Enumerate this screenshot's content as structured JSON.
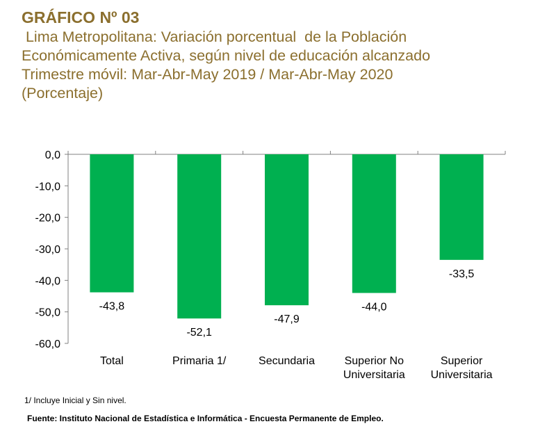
{
  "header": {
    "chart_number": "GRÁFICO Nº 03",
    "line1": " Lima Metropolitana: Variación porcentual  de la Población",
    "line2": "Económicamente Activa, según nivel de educación alcanzado",
    "line3": "Trimestre móvil: Mar-Abr-May 2019 / Mar-Abr-May 2020",
    "line4": "(Porcentaje)"
  },
  "chart_data": {
    "type": "bar",
    "categories": [
      [
        "Total"
      ],
      [
        "Primaria 1/"
      ],
      [
        "Secundaria"
      ],
      [
        "Superior No",
        "Universitaria"
      ],
      [
        "Superior",
        "Universitaria"
      ]
    ],
    "values": [
      -43.8,
      -52.1,
      -47.9,
      -44.0,
      -33.5
    ],
    "value_labels": [
      "-43,8",
      "-52,1",
      "-47,9",
      "-44,0",
      "-33,5"
    ],
    "yticks": [
      "0,0",
      "-10,0",
      "-20,0",
      "-30,0",
      "-40,0",
      "-50,0",
      "-60,0"
    ],
    "ylim": [
      -60,
      0
    ],
    "bar_color": "#00b050",
    "axis_color": "#808080",
    "grid": false,
    "legend": false
  },
  "footer": {
    "note": "1/ Incluye Inicial y Sin nivel.",
    "source": "Fuente: Instituto Nacional de Estadística e Informática - Encuesta Permanente de Empleo."
  }
}
